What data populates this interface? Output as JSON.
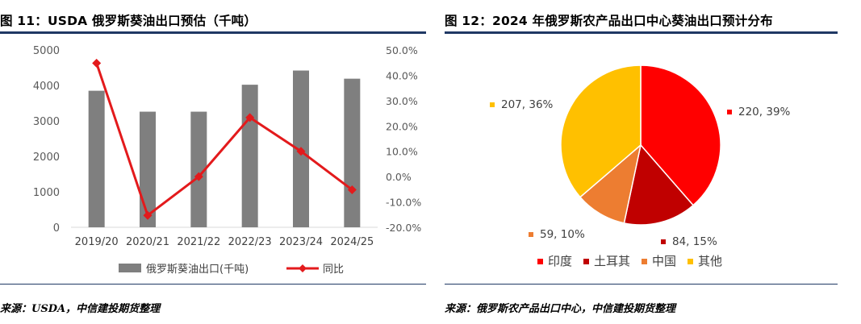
{
  "left": {
    "title": "图 11：USDA 俄罗斯葵油出口预估（千吨）",
    "source": "来源：USDA，中信建投期货整理"
  },
  "right": {
    "title": "图 12：2024 年俄罗斯农产品出口中心葵油出口预计分布",
    "source": "来源：俄罗斯农产品出口中心，中信建投期货整理"
  },
  "colors": {
    "bar": "#7f7f7f",
    "line": "#e31a1c",
    "rule": "#1f3864"
  },
  "chart_data": [
    {
      "type": "bar",
      "categories": [
        "2019/20",
        "2020/21",
        "2021/22",
        "2022/23",
        "2023/24",
        "2024/25"
      ],
      "series": [
        {
          "name": "俄罗斯葵油出口(千吨)",
          "type": "bar",
          "axis": "left",
          "values": [
            3850,
            3260,
            3260,
            4020,
            4420,
            4190
          ]
        },
        {
          "name": "同比",
          "type": "line",
          "axis": "right",
          "marker": "diamond",
          "values": [
            44.8,
            -15.3,
            0.0,
            23.3,
            10.0,
            -5.2
          ]
        }
      ],
      "ylim": [
        0,
        5000
      ],
      "yticks": [
        "0",
        "1000",
        "2000",
        "3000",
        "4000",
        "5000"
      ],
      "y2lim": [
        -20,
        50
      ],
      "y2ticks": [
        "-20.0%",
        "-10.0%",
        "0.0%",
        "10.0%",
        "20.0%",
        "30.0%",
        "40.0%",
        "50.0%"
      ],
      "grid": false,
      "legend_position": "bottom"
    },
    {
      "type": "pie",
      "slices": [
        {
          "name": "印度",
          "value": 220,
          "label": "220, 39%",
          "color": "#ff0000"
        },
        {
          "name": "土耳其",
          "value": 84,
          "label": "84, 15%",
          "color": "#c00000"
        },
        {
          "name": "中国",
          "value": 59,
          "label": "59, 10%",
          "color": "#ed7d31"
        },
        {
          "name": "其他",
          "value": 207,
          "label": "207, 36%",
          "color": "#ffc000"
        }
      ],
      "legend_position": "bottom"
    }
  ]
}
